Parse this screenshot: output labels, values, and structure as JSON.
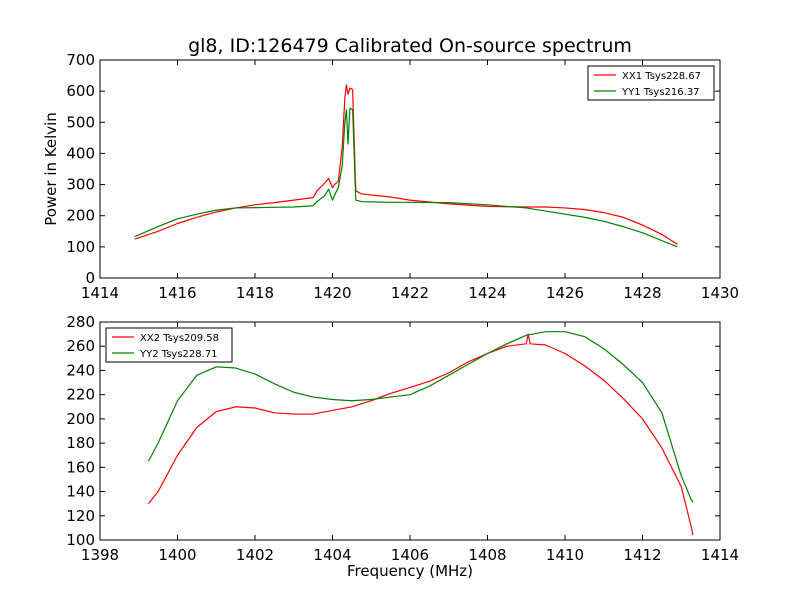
{
  "title": "gl8, ID:126479 Calibrated On-source spectrum",
  "chart_data": [
    {
      "type": "line",
      "ylabel": "Power in Kelvin",
      "xlabel": "",
      "xlim": [
        1414,
        1430
      ],
      "ylim": [
        0,
        700
      ],
      "x_ticks": [
        1414,
        1416,
        1418,
        1420,
        1422,
        1424,
        1426,
        1428,
        1430
      ],
      "y_ticks": [
        0,
        100,
        200,
        300,
        400,
        500,
        600,
        700
      ],
      "legend_position": "top-right",
      "series": [
        {
          "name": "XX1 Tsys228.67",
          "color": "#ff0000",
          "points": [
            [
              1414.9,
              125
            ],
            [
              1415.5,
              150
            ],
            [
              1416,
              175
            ],
            [
              1416.5,
              195
            ],
            [
              1417,
              212
            ],
            [
              1417.5,
              225
            ],
            [
              1418,
              235
            ],
            [
              1418.5,
              242
            ],
            [
              1419,
              250
            ],
            [
              1419.5,
              258
            ],
            [
              1419.6,
              280
            ],
            [
              1419.8,
              305
            ],
            [
              1419.9,
              320
            ],
            [
              1420.0,
              290
            ],
            [
              1420.05,
              300
            ],
            [
              1420.15,
              310
            ],
            [
              1420.25,
              420
            ],
            [
              1420.32,
              580
            ],
            [
              1420.36,
              620
            ],
            [
              1420.4,
              590
            ],
            [
              1420.45,
              610
            ],
            [
              1420.52,
              605
            ],
            [
              1420.6,
              280
            ],
            [
              1420.75,
              270
            ],
            [
              1421.5,
              260
            ],
            [
              1422,
              250
            ],
            [
              1423,
              238
            ],
            [
              1424,
              230
            ],
            [
              1425,
              228
            ],
            [
              1425.5,
              228
            ],
            [
              1426,
              225
            ],
            [
              1426.5,
              220
            ],
            [
              1427,
              210
            ],
            [
              1427.5,
              195
            ],
            [
              1428,
              170
            ],
            [
              1428.5,
              140
            ],
            [
              1428.9,
              108
            ]
          ]
        },
        {
          "name": "YY1 Tsys216.37",
          "color": "#008000",
          "points": [
            [
              1414.9,
              133
            ],
            [
              1415.5,
              165
            ],
            [
              1416,
              190
            ],
            [
              1416.5,
              205
            ],
            [
              1417,
              218
            ],
            [
              1417.5,
              225
            ],
            [
              1418,
              226
            ],
            [
              1418.5,
              227
            ],
            [
              1419,
              228
            ],
            [
              1419.5,
              232
            ],
            [
              1419.6,
              245
            ],
            [
              1419.8,
              265
            ],
            [
              1419.9,
              285
            ],
            [
              1420.0,
              250
            ],
            [
              1420.05,
              265
            ],
            [
              1420.15,
              290
            ],
            [
              1420.25,
              360
            ],
            [
              1420.32,
              500
            ],
            [
              1420.36,
              540
            ],
            [
              1420.4,
              430
            ],
            [
              1420.45,
              545
            ],
            [
              1420.52,
              540
            ],
            [
              1420.6,
              250
            ],
            [
              1420.75,
              245
            ],
            [
              1421.5,
              243
            ],
            [
              1422,
              243
            ],
            [
              1423,
              242
            ],
            [
              1424,
              235
            ],
            [
              1425,
              225
            ],
            [
              1425.5,
              215
            ],
            [
              1426,
              205
            ],
            [
              1426.5,
              195
            ],
            [
              1427,
              182
            ],
            [
              1427.5,
              165
            ],
            [
              1428,
              145
            ],
            [
              1428.5,
              120
            ],
            [
              1428.9,
              100
            ]
          ]
        }
      ]
    },
    {
      "type": "line",
      "xlabel": "Frequency (MHz)",
      "ylabel": "",
      "xlim": [
        1398,
        1414
      ],
      "ylim": [
        100,
        280
      ],
      "x_ticks": [
        1398,
        1400,
        1402,
        1404,
        1406,
        1408,
        1410,
        1412,
        1414
      ],
      "y_ticks": [
        100,
        120,
        140,
        160,
        180,
        200,
        220,
        240,
        260,
        280
      ],
      "legend_position": "top-left",
      "series": [
        {
          "name": "XX2 Tsys209.58",
          "color": "#ff0000",
          "points": [
            [
              1399.25,
              130
            ],
            [
              1399.5,
              140
            ],
            [
              1400,
              170
            ],
            [
              1400.5,
              193
            ],
            [
              1401,
              206
            ],
            [
              1401.5,
              210
            ],
            [
              1402,
              209
            ],
            [
              1402.5,
              205
            ],
            [
              1403,
              204
            ],
            [
              1403.5,
              204
            ],
            [
              1404,
              207
            ],
            [
              1404.5,
              210
            ],
            [
              1405,
              215
            ],
            [
              1405.5,
              221
            ],
            [
              1406,
              226
            ],
            [
              1406.5,
              231
            ],
            [
              1407,
              238
            ],
            [
              1407.5,
              247
            ],
            [
              1408,
              254
            ],
            [
              1408.5,
              260
            ],
            [
              1409,
              262
            ],
            [
              1409.05,
              270
            ],
            [
              1409.1,
              262
            ],
            [
              1409.5,
              261
            ],
            [
              1410,
              254
            ],
            [
              1410.5,
              244
            ],
            [
              1411,
              232
            ],
            [
              1411.5,
              217
            ],
            [
              1412,
              200
            ],
            [
              1412.5,
              176
            ],
            [
              1413,
              144
            ],
            [
              1413.25,
              112
            ],
            [
              1413.3,
              104
            ]
          ]
        },
        {
          "name": "YY2 Tsys228.71",
          "color": "#008000",
          "points": [
            [
              1399.25,
              165
            ],
            [
              1399.5,
              180
            ],
            [
              1400,
              215
            ],
            [
              1400.5,
              236
            ],
            [
              1401,
              243
            ],
            [
              1401.5,
              242
            ],
            [
              1402,
              237
            ],
            [
              1402.5,
              229
            ],
            [
              1403,
              222
            ],
            [
              1403.5,
              218
            ],
            [
              1404,
              216
            ],
            [
              1404.5,
              215
            ],
            [
              1405,
              216
            ],
            [
              1405.5,
              218
            ],
            [
              1406,
              220
            ],
            [
              1406.5,
              227
            ],
            [
              1407,
              236
            ],
            [
              1407.5,
              245
            ],
            [
              1408,
              254
            ],
            [
              1408.5,
              262
            ],
            [
              1409,
              269
            ],
            [
              1409.5,
              272
            ],
            [
              1410,
              272
            ],
            [
              1410.5,
              268
            ],
            [
              1411,
              258
            ],
            [
              1411.5,
              245
            ],
            [
              1412,
              230
            ],
            [
              1412.5,
              205
            ],
            [
              1413,
              153
            ],
            [
              1413.25,
              134
            ],
            [
              1413.3,
              131
            ]
          ]
        }
      ]
    }
  ]
}
